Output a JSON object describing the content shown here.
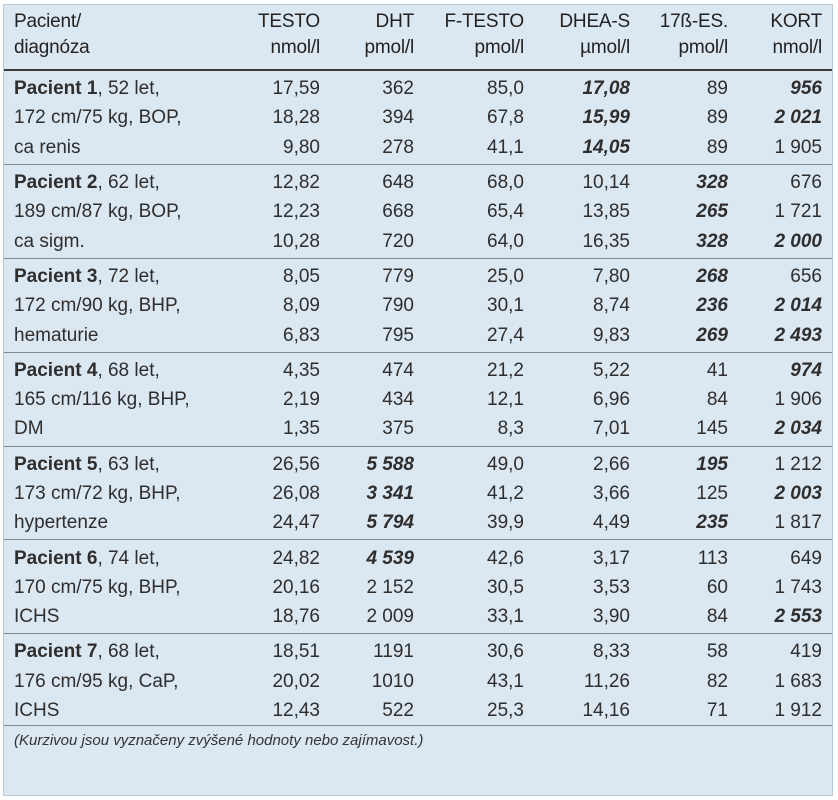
{
  "header": {
    "first_line1": "Pacient/",
    "first_line2": "diagnóza",
    "columns": [
      {
        "name": "TESTO",
        "unit": "nmol/l"
      },
      {
        "name": "DHT",
        "unit": "pmol/l"
      },
      {
        "name": "F-TESTO",
        "unit": "pmol/l"
      },
      {
        "name": "DHEA-S",
        "unit": "µmol/l"
      },
      {
        "name": "17ß-ES.",
        "unit": "pmol/l"
      },
      {
        "name": "KORT",
        "unit": "nmol/l"
      }
    ]
  },
  "patients": [
    {
      "name": "Pacient 1",
      "desc": [
        ", 52 let,",
        "172 cm/75 kg, BOP,",
        "ca renis"
      ],
      "rows": [
        [
          "17,59",
          "362",
          "85,0",
          "17,08",
          "89",
          "956"
        ],
        [
          "18,28",
          "394",
          "67,8",
          "15,99",
          "89",
          "2 021"
        ],
        [
          "9,80",
          "278",
          "41,1",
          "14,05",
          "89",
          "1 905"
        ]
      ],
      "highlight": [
        [
          3,
          5
        ],
        [
          3,
          5
        ],
        [
          3
        ]
      ]
    },
    {
      "name": "Pacient 2",
      "desc": [
        ", 62 let,",
        "189 cm/87 kg, BOP,",
        "ca sigm."
      ],
      "rows": [
        [
          "12,82",
          "648",
          "68,0",
          "10,14",
          "328",
          "676"
        ],
        [
          "12,23",
          "668",
          "65,4",
          "13,85",
          "265",
          "1 721"
        ],
        [
          "10,28",
          "720",
          "64,0",
          "16,35",
          "328",
          "2 000"
        ]
      ],
      "highlight": [
        [
          4
        ],
        [
          4
        ],
        [
          4,
          5
        ]
      ]
    },
    {
      "name": "Pacient 3",
      "desc": [
        ", 72 let,",
        "172 cm/90 kg, BHP,",
        "hematurie"
      ],
      "rows": [
        [
          "8,05",
          "779",
          "25,0",
          "7,80",
          "268",
          "656"
        ],
        [
          "8,09",
          "790",
          "30,1",
          "8,74",
          "236",
          "2 014"
        ],
        [
          "6,83",
          "795",
          "27,4",
          "9,83",
          "269",
          "2 493"
        ]
      ],
      "highlight": [
        [
          4
        ],
        [
          4,
          5
        ],
        [
          4,
          5
        ]
      ]
    },
    {
      "name": "Pacient 4",
      "desc": [
        ", 68 let,",
        "165 cm/116 kg, BHP,",
        "DM"
      ],
      "rows": [
        [
          "4,35",
          "474",
          "21,2",
          "5,22",
          "41",
          "974"
        ],
        [
          "2,19",
          "434",
          "12,1",
          "6,96",
          "84",
          "1 906"
        ],
        [
          "1,35",
          "375",
          "8,3",
          "7,01",
          "145",
          "2 034"
        ]
      ],
      "highlight": [
        [
          5
        ],
        [],
        [
          5
        ]
      ]
    },
    {
      "name": "Pacient 5",
      "desc": [
        ", 63 let,",
        "173 cm/72 kg, BHP,",
        "hypertenze"
      ],
      "rows": [
        [
          "26,56",
          "5 588",
          "49,0",
          "2,66",
          "195",
          "1 212"
        ],
        [
          "26,08",
          "3 341",
          "41,2",
          "3,66",
          "125",
          "2 003"
        ],
        [
          "24,47",
          "5 794",
          "39,9",
          "4,49",
          "235",
          "1 817"
        ]
      ],
      "highlight": [
        [
          1,
          4
        ],
        [
          1,
          5
        ],
        [
          1,
          4
        ]
      ]
    },
    {
      "name": "Pacient 6",
      "desc": [
        ", 74 let,",
        "170 cm/75 kg, BHP,",
        "ICHS"
      ],
      "rows": [
        [
          "24,82",
          "4 539",
          "42,6",
          "3,17",
          "113",
          "649"
        ],
        [
          "20,16",
          "2 152",
          "30,5",
          "3,53",
          "60",
          "1 743"
        ],
        [
          "18,76",
          "2 009",
          "33,1",
          "3,90",
          "84",
          "2 553"
        ]
      ],
      "highlight": [
        [
          1
        ],
        [],
        [
          5
        ]
      ]
    },
    {
      "name": "Pacient 7",
      "desc": [
        ", 68 let,",
        "176 cm/95 kg, CaP,",
        "ICHS"
      ],
      "rows": [
        [
          "18,51",
          "1191",
          "30,6",
          "8,33",
          "58",
          "419"
        ],
        [
          "20,02",
          "1010",
          "43,1",
          "11,26",
          "82",
          "1 683"
        ],
        [
          "12,43",
          "522",
          "25,3",
          "14,16",
          "71",
          "1 912"
        ]
      ],
      "highlight": [
        [],
        [],
        []
      ]
    }
  ],
  "footnote": "(Kurzivou jsou vyznačeny zvýšené hodnoty nebo zajímavost.)"
}
